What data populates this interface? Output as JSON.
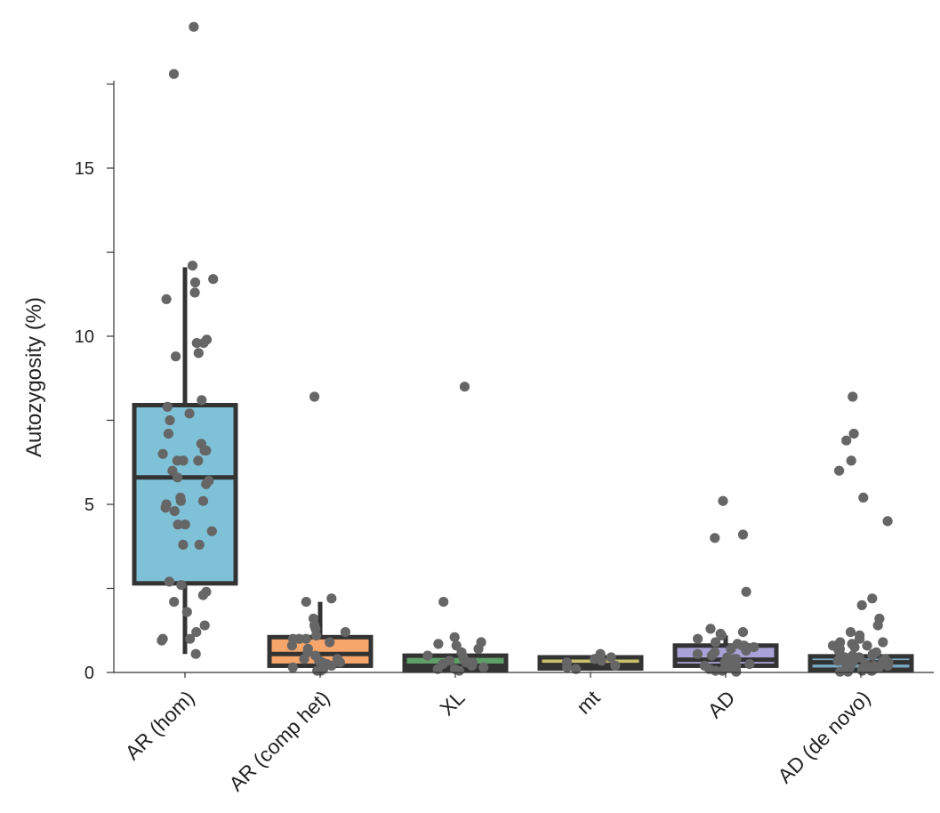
{
  "chart_data": {
    "type": "box",
    "title": "",
    "xlabel": "",
    "ylabel": "Autozygosity (%)",
    "ylim": [
      0,
      17.6
    ],
    "yticks": [
      0,
      5,
      10,
      15
    ],
    "minor_yticks": [
      2.5,
      7.5,
      12.5,
      17.5
    ],
    "categories": [
      "AR (hom)",
      "AR (comp het)",
      "XL",
      "mt",
      "AD",
      "AD (de novo)"
    ],
    "colors": [
      "#7fc2d8",
      "#f6a56b",
      "#5f9f68",
      "#c8c06a",
      "#a9a2d8",
      "#7aa7c4"
    ],
    "edge_color": "#333333",
    "point_color": "#666666",
    "boxes": [
      {
        "q1": 2.65,
        "median": 5.8,
        "q3": 7.95,
        "whisker_low": 0.55,
        "whisker_high": 12.05
      },
      {
        "q1": 0.2,
        "median": 0.55,
        "q3": 1.05,
        "whisker_low": 0.0,
        "whisker_high": 2.1
      },
      {
        "q1": 0.08,
        "median": 0.2,
        "q3": 0.5,
        "whisker_low": 0.0,
        "whisker_high": 0.5
      },
      {
        "q1": 0.12,
        "median": 0.22,
        "q3": 0.45,
        "whisker_low": 0.05,
        "whisker_high": 0.5
      },
      {
        "q1": 0.2,
        "median": 0.38,
        "q3": 0.8,
        "whisker_low": 0.0,
        "whisker_high": 1.1
      },
      {
        "q1": 0.08,
        "median": 0.3,
        "q3": 0.48,
        "whisker_low": 0.0,
        "whisker_high": 0.5
      }
    ],
    "points": [
      [
        19.2,
        17.8,
        12.1,
        11.7,
        11.6,
        11.3,
        11.1,
        9.9,
        9.8,
        9.8,
        9.5,
        9.4,
        8.1,
        7.9,
        7.7,
        7.5,
        7.1,
        6.8,
        6.6,
        6.6,
        6.5,
        6.3,
        6.3,
        6.3,
        6.0,
        5.8,
        5.7,
        5.6,
        5.2,
        5.1,
        5.1,
        5.0,
        4.9,
        4.8,
        4.4,
        4.4,
        4.2,
        3.8,
        3.8,
        2.7,
        2.6,
        2.4,
        2.3,
        2.1,
        1.8,
        1.4,
        1.2,
        1.0,
        1.0,
        0.95,
        0.55
      ],
      [
        8.2,
        2.2,
        2.1,
        1.6,
        1.4,
        1.3,
        1.2,
        1.1,
        1.0,
        1.0,
        1.0,
        0.9,
        0.8,
        0.7,
        0.6,
        0.5,
        0.4,
        0.4,
        0.35,
        0.3,
        0.3,
        0.25,
        0.2,
        0.15,
        0.1,
        0.05,
        0.05
      ],
      [
        8.5,
        2.1,
        1.05,
        0.9,
        0.85,
        0.8,
        0.7,
        0.6,
        0.5,
        0.45,
        0.4,
        0.35,
        0.3,
        0.3,
        0.25,
        0.2,
        0.15,
        0.1,
        0.1,
        0.05
      ],
      [
        0.55,
        0.45,
        0.4,
        0.35,
        0.3,
        0.2,
        0.15,
        0.1
      ],
      [
        5.1,
        4.1,
        4.0,
        2.4,
        1.3,
        1.2,
        1.15,
        1.1,
        1.0,
        0.9,
        0.85,
        0.8,
        0.8,
        0.75,
        0.7,
        0.65,
        0.6,
        0.55,
        0.5,
        0.45,
        0.4,
        0.4,
        0.35,
        0.3,
        0.3,
        0.25,
        0.2,
        0.2,
        0.15,
        0.1,
        0.1,
        0.05,
        0.05,
        0.02
      ],
      [
        8.2,
        7.1,
        6.9,
        6.3,
        6.0,
        5.2,
        4.5,
        2.2,
        2.0,
        1.6,
        1.4,
        1.2,
        1.1,
        1.0,
        0.9,
        0.9,
        0.85,
        0.8,
        0.8,
        0.75,
        0.7,
        0.7,
        0.65,
        0.6,
        0.6,
        0.55,
        0.5,
        0.5,
        0.45,
        0.45,
        0.4,
        0.4,
        0.35,
        0.35,
        0.3,
        0.3,
        0.3,
        0.25,
        0.25,
        0.2,
        0.2,
        0.2,
        0.15,
        0.15,
        0.1,
        0.1,
        0.1,
        0.05,
        0.05,
        0.05,
        0.02,
        0.02
      ]
    ]
  }
}
